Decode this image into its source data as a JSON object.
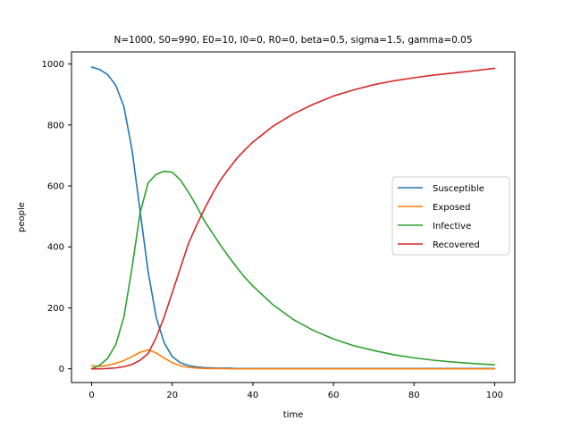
{
  "chart_data": {
    "type": "line",
    "title": "N=1000, S0=990, E0=10, I0=0, R0=0, beta=0.5, sigma=1.5, gamma=0.05",
    "xlabel": "time",
    "ylabel": "people",
    "xlim": [
      -5,
      105
    ],
    "ylim": [
      -45,
      1040
    ],
    "xticks": [
      0,
      20,
      40,
      60,
      80,
      100
    ],
    "yticks": [
      0,
      200,
      400,
      600,
      800,
      1000
    ],
    "grid": false,
    "legend_position": "center-right",
    "x": [
      0,
      2,
      4,
      6,
      8,
      10,
      12,
      14,
      16,
      18,
      20,
      22,
      24,
      26,
      28,
      30,
      32,
      34,
      36,
      38,
      40,
      45,
      50,
      55,
      60,
      65,
      70,
      75,
      80,
      85,
      90,
      95,
      100
    ],
    "series": [
      {
        "name": "Susceptible",
        "color": "#1f77b4",
        "values": [
          990,
          982,
          965,
          930,
          860,
          720,
          520,
          320,
          170,
          85,
          40,
          20,
          11,
          6,
          4,
          3,
          2,
          2,
          1,
          1,
          1,
          1,
          1,
          1,
          1,
          1,
          1,
          1,
          1,
          1,
          1,
          1,
          1
        ]
      },
      {
        "name": "Exposed",
        "color": "#ff7f0e",
        "values": [
          10,
          8,
          12,
          18,
          27,
          40,
          54,
          62,
          52,
          35,
          20,
          10,
          5,
          2.5,
          1.5,
          1,
          0.5,
          0,
          0,
          0,
          0,
          0,
          0,
          0,
          0,
          0,
          0,
          0,
          0,
          0,
          0,
          0,
          0
        ]
      },
      {
        "name": "Infective",
        "color": "#2ca02c",
        "values": [
          0,
          12,
          35,
          80,
          170,
          330,
          510,
          610,
          638,
          648,
          645,
          620,
          580,
          535,
          485,
          445,
          405,
          368,
          333,
          300,
          272,
          210,
          162,
          126,
          98,
          76,
          60,
          46,
          36,
          28,
          22,
          17,
          13
        ]
      },
      {
        "name": "Recovered",
        "color": "#d62728",
        "values": [
          0,
          0,
          1,
          3,
          7,
          14,
          28,
          50,
          102,
          170,
          250,
          330,
          410,
          470,
          525,
          575,
          620,
          656,
          690,
          718,
          744,
          796,
          836,
          868,
          895,
          915,
          932,
          945,
          955,
          964,
          971,
          978,
          986
        ]
      }
    ]
  }
}
